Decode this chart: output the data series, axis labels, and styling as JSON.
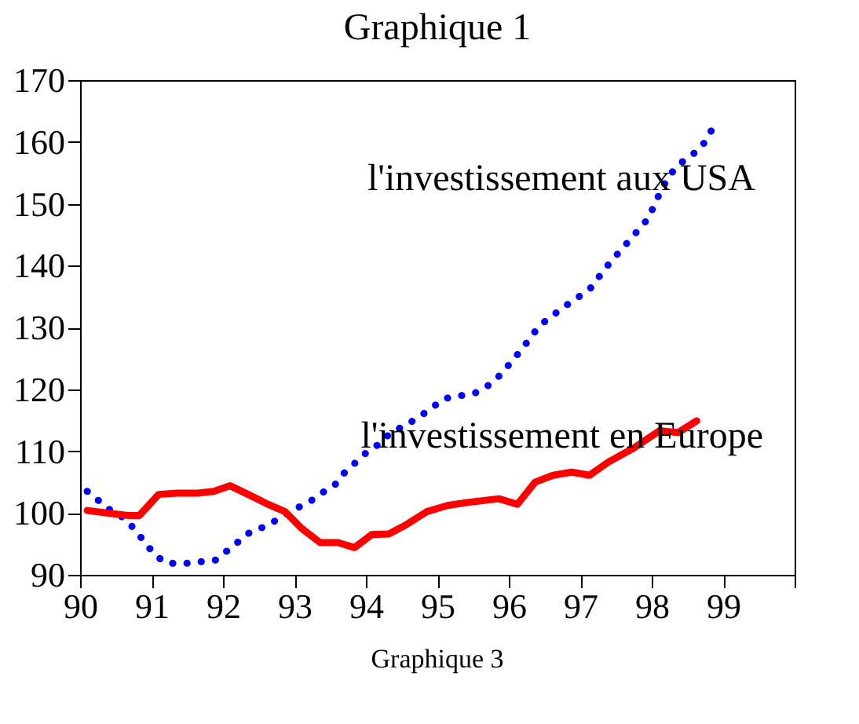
{
  "chart_data": {
    "type": "line",
    "title": "Graphique 1",
    "xlim": [
      1990,
      2000
    ],
    "xticks": [
      {
        "value": 1990,
        "label": "90"
      },
      {
        "value": 1991,
        "label": "91"
      },
      {
        "value": 1992,
        "label": "92"
      },
      {
        "value": 1993,
        "label": "93"
      },
      {
        "value": 1994,
        "label": "94"
      },
      {
        "value": 1995,
        "label": "95"
      },
      {
        "value": 1996,
        "label": "96"
      },
      {
        "value": 1997,
        "label": "97"
      },
      {
        "value": 1998,
        "label": "98"
      },
      {
        "value": 1999,
        "label": "99"
      },
      {
        "value": 2000,
        "label": null
      }
    ],
    "ylim": [
      90,
      170
    ],
    "yticks": [
      90,
      100,
      110,
      120,
      130,
      140,
      150,
      160,
      170
    ],
    "grid": false,
    "legend": false,
    "marker": "none",
    "series": [
      {
        "name": "l'investissement aux USA",
        "color": "#0000ff",
        "line_style": "dotted",
        "x": [
          1990.1,
          1990.44,
          1990.63,
          1990.78,
          1991.04,
          1991.2,
          1991.44,
          1991.9,
          1992.22,
          1992.39,
          1992.61,
          1993.0,
          1993.2,
          1993.38,
          1993.57,
          1993.7,
          1994.0,
          1994.19,
          1994.35,
          1994.54,
          1994.73,
          1995.1,
          1995.53,
          1995.71,
          1995.88,
          1996.17,
          1996.43,
          1996.78,
          1996.96,
          1997.14,
          1997.27,
          1997.41,
          1997.69,
          1997.95,
          1998.12,
          1998.22,
          1998.36,
          1998.69,
          1998.91
        ],
        "values": [
          103.5,
          100.3,
          99.1,
          97.1,
          93.3,
          91.9,
          91.8,
          92.4,
          95.4,
          97.0,
          97.9,
          100.6,
          101.7,
          103.2,
          104.6,
          106.5,
          109.7,
          111.2,
          113.0,
          114.1,
          115.4,
          118.5,
          119.4,
          120.6,
          122.3,
          126.3,
          130.3,
          133.4,
          134.8,
          136.3,
          138.3,
          140.4,
          144.1,
          147.6,
          151.9,
          154.1,
          156.2,
          159.0,
          163.3
        ]
      },
      {
        "name": "l'investissement en Europe",
        "color": "#ff0000",
        "line_style": "solid",
        "x": [
          1990.1,
          1990.44,
          1990.67,
          1990.83,
          1991.1,
          1991.36,
          1991.65,
          1991.87,
          1992.1,
          1992.37,
          1992.63,
          1992.87,
          1993.1,
          1993.36,
          1993.61,
          1993.84,
          1994.08,
          1994.32,
          1994.55,
          1994.85,
          1995.14,
          1995.42,
          1995.86,
          1996.12,
          1996.37,
          1996.62,
          1996.88,
          1997.13,
          1997.39,
          1997.75,
          1998.11,
          1998.37,
          1998.63
        ],
        "values": [
          100.4,
          99.9,
          99.6,
          99.6,
          103.0,
          103.2,
          103.2,
          103.5,
          104.4,
          102.9,
          101.4,
          100.2,
          97.5,
          95.2,
          95.2,
          94.4,
          96.5,
          96.6,
          98.0,
          100.2,
          101.2,
          101.7,
          102.3,
          101.4,
          105.0,
          106.1,
          106.6,
          106.1,
          108.2,
          110.5,
          113.3,
          113.0,
          114.9
        ]
      }
    ],
    "annotations": [
      "Graphique 3"
    ]
  }
}
